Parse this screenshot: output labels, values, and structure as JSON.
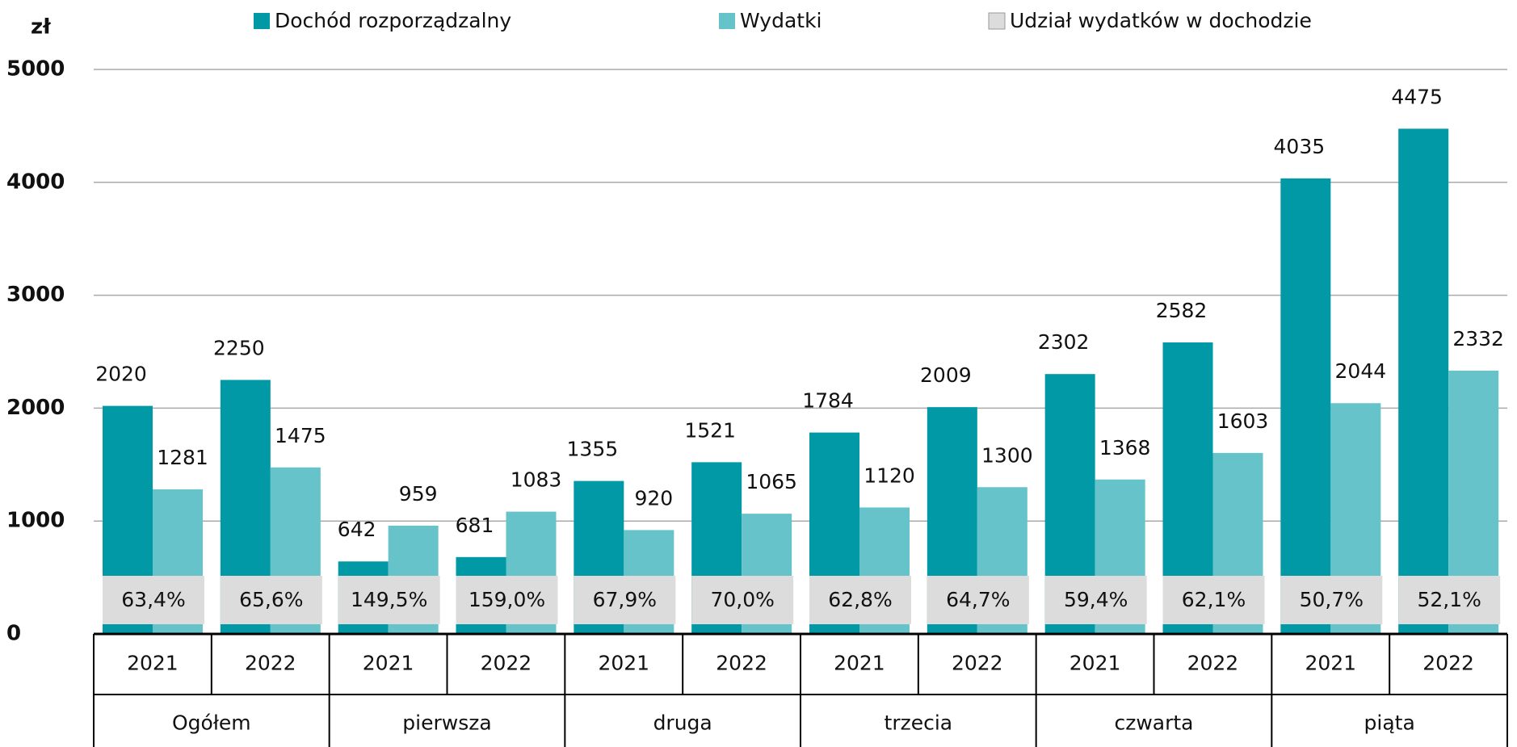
{
  "chart_data": {
    "type": "bar",
    "y_label": "zł",
    "categories": [
      "2021",
      "2022",
      "2021",
      "2022",
      "2021",
      "2022",
      "2021",
      "2022",
      "2021",
      "2022",
      "2021",
      "2022"
    ],
    "groups": [
      "Ogółem",
      "pierwsza",
      "druga",
      "trzecia",
      "czwarta",
      "piąta"
    ],
    "series": [
      {
        "name": "Dochód rozporządzalny",
        "color": "#0199a5",
        "values": [
          2020,
          2250,
          642,
          681,
          1355,
          1521,
          1784,
          2009,
          2302,
          2582,
          4035,
          4475
        ]
      },
      {
        "name": "Wydatki",
        "color": "#66c3c9",
        "values": [
          1281,
          1475,
          959,
          1083,
          920,
          1065,
          1120,
          1300,
          1368,
          1603,
          2044,
          2332
        ]
      },
      {
        "name": "Udział wydatków w dochodzie",
        "color": "#dcdcdc",
        "values": [
          63.4,
          65.6,
          149.5,
          159.0,
          67.9,
          70.0,
          62.8,
          64.7,
          59.4,
          62.1,
          50.7,
          52.1
        ],
        "value_labels": [
          "63,4%",
          "65,6%",
          "149,5%",
          "159,0%",
          "67,9%",
          "70,0%",
          "62,8%",
          "64,7%",
          "59,4%",
          "62,1%",
          "50,7%",
          "52,1%"
        ]
      }
    ],
    "ylim": [
      0,
      5000
    ],
    "yticks": [
      0,
      1000,
      2000,
      3000,
      4000,
      5000
    ],
    "grid": true
  }
}
